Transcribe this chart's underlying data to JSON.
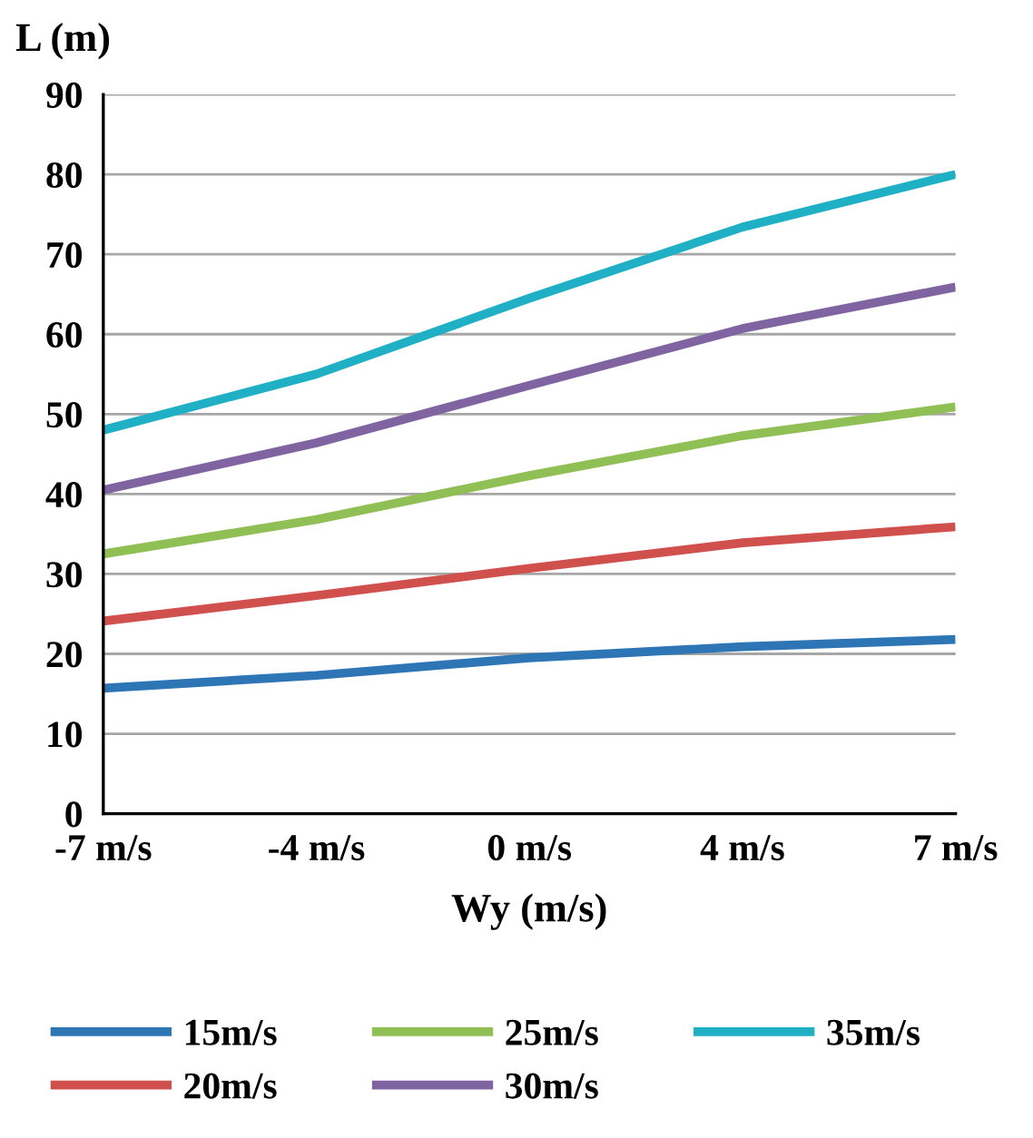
{
  "chart_data": {
    "type": "line",
    "ylabel": "L (m)",
    "xlabel": "Wy (m/s)",
    "categories": [
      "-7 m/s",
      "-4 m/s",
      "0 m/s",
      "4 m/s",
      "7 m/s"
    ],
    "ylim": [
      0,
      90
    ],
    "yticks": [
      0,
      10,
      20,
      30,
      40,
      50,
      60,
      70,
      80,
      90
    ],
    "grid": "y",
    "legend": "bottom",
    "marker": "none",
    "line_style": "solid",
    "series": [
      {
        "name": "15m/s",
        "color": "#2e75b6",
        "values": [
          15.7,
          17.3,
          19.5,
          20.9,
          21.8
        ]
      },
      {
        "name": "20m/s",
        "color": "#d0504d",
        "values": [
          24.1,
          27.3,
          30.7,
          33.9,
          35.9
        ]
      },
      {
        "name": "25m/s",
        "color": "#8fbf55",
        "values": [
          32.5,
          36.8,
          42.3,
          47.3,
          50.9
        ]
      },
      {
        "name": "30m/s",
        "color": "#8064a2",
        "values": [
          40.5,
          46.4,
          53.6,
          60.7,
          65.9
        ]
      },
      {
        "name": "35m/s",
        "color": "#1fb0c6",
        "values": [
          48,
          55,
          64.5,
          73.4,
          80
        ]
      }
    ]
  }
}
